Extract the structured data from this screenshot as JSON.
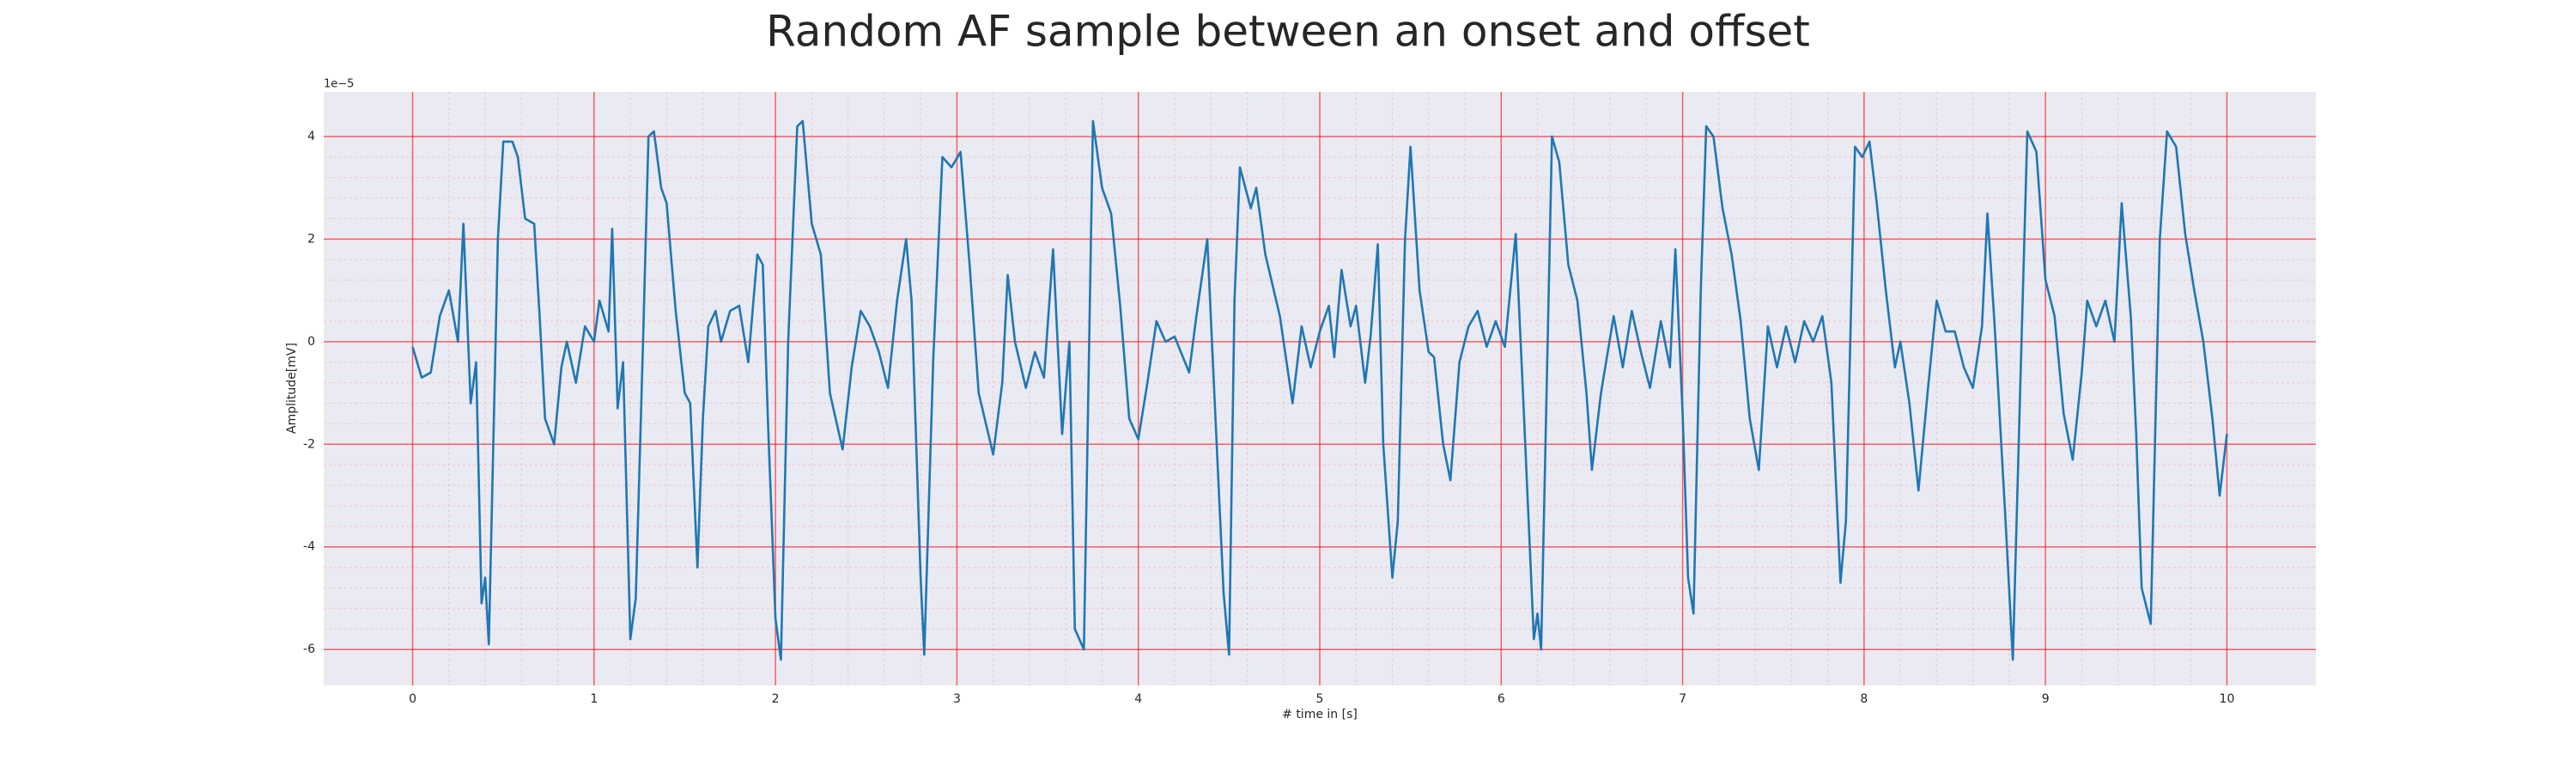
{
  "chart_data": {
    "type": "line",
    "title": "Random AF sample between an onset and offset",
    "xlabel": "# time in [s]",
    "ylabel": "Amplitude[mV]",
    "y_offset_label": "1e−5",
    "color": "#1f77b4",
    "grid": true,
    "grid_color": "#ff0000",
    "xlim": [
      -0.49,
      10.49
    ],
    "ylim": [
      -6.7,
      4.87
    ],
    "xticks": [
      0,
      1,
      2,
      3,
      4,
      5,
      6,
      7,
      8,
      9,
      10
    ],
    "yticks": [
      -6,
      -4,
      -2,
      0,
      2,
      4
    ],
    "x": [
      0,
      0.05,
      0.1,
      0.15,
      0.2,
      0.25,
      0.28,
      0.32,
      0.35,
      0.38,
      0.4,
      0.42,
      0.47,
      0.5,
      0.55,
      0.58,
      0.62,
      0.67,
      0.7,
      0.73,
      0.78,
      0.82,
      0.85,
      0.9,
      0.95,
      1.0,
      1.03,
      1.08,
      1.1,
      1.13,
      1.16,
      1.2,
      1.23,
      1.27,
      1.3,
      1.33,
      1.37,
      1.4,
      1.45,
      1.5,
      1.53,
      1.57,
      1.6,
      1.63,
      1.67,
      1.7,
      1.75,
      1.8,
      1.85,
      1.9,
      1.93,
      1.96,
      2.0,
      2.03,
      2.07,
      2.12,
      2.15,
      2.2,
      2.25,
      2.3,
      2.37,
      2.42,
      2.47,
      2.52,
      2.57,
      2.62,
      2.67,
      2.72,
      2.75,
      2.8,
      2.82,
      2.87,
      2.92,
      2.97,
      3.02,
      3.07,
      3.12,
      3.2,
      3.25,
      3.28,
      3.32,
      3.38,
      3.43,
      3.48,
      3.53,
      3.58,
      3.62,
      3.65,
      3.7,
      3.75,
      3.8,
      3.85,
      3.9,
      3.95,
      4.0,
      4.05,
      4.1,
      4.15,
      4.2,
      4.28,
      4.32,
      4.38,
      4.42,
      4.47,
      4.5,
      4.53,
      4.56,
      4.62,
      4.65,
      4.7,
      4.78,
      4.85,
      4.9,
      4.95,
      5.0,
      5.05,
      5.08,
      5.12,
      5.17,
      5.2,
      5.25,
      5.28,
      5.32,
      5.35,
      5.4,
      5.43,
      5.47,
      5.5,
      5.55,
      5.6,
      5.63,
      5.68,
      5.72,
      5.77,
      5.82,
      5.87,
      5.92,
      5.97,
      6.02,
      6.08,
      6.12,
      6.18,
      6.2,
      6.22,
      6.28,
      6.32,
      6.37,
      6.42,
      6.47,
      6.5,
      6.55,
      6.62,
      6.67,
      6.72,
      6.77,
      6.82,
      6.88,
      6.93,
      6.96,
      7.0,
      7.03,
      7.06,
      7.1,
      7.13,
      7.17,
      7.22,
      7.27,
      7.32,
      7.37,
      7.42,
      7.47,
      7.52,
      7.57,
      7.62,
      7.67,
      7.72,
      7.77,
      7.82,
      7.87,
      7.9,
      7.95,
      7.99,
      8.03,
      8.07,
      8.12,
      8.17,
      8.2,
      8.25,
      8.3,
      8.35,
      8.4,
      8.45,
      8.5,
      8.55,
      8.6,
      8.65,
      8.68,
      8.72,
      8.78,
      8.82,
      8.86,
      8.9,
      8.95,
      9.0,
      9.05,
      9.1,
      9.15,
      9.2,
      9.23,
      9.28,
      9.33,
      9.38,
      9.42,
      9.47,
      9.5,
      9.53,
      9.58,
      9.63,
      9.67,
      9.72,
      9.77,
      9.82,
      9.87,
      9.92,
      9.96,
      10.0
    ],
    "values": [
      -0.1,
      -0.7,
      -0.6,
      0.5,
      1.0,
      0.0,
      2.3,
      -1.2,
      -0.4,
      -5.1,
      -4.6,
      -5.9,
      2.0,
      3.9,
      3.9,
      3.6,
      2.4,
      2.3,
      0.5,
      -1.5,
      -2.0,
      -0.5,
      0,
      -0.8,
      0.3,
      0,
      0.8,
      0.2,
      2.2,
      -1.3,
      -0.4,
      -5.8,
      -5.0,
      0,
      4.0,
      4.1,
      3.0,
      2.7,
      0.6,
      -1.0,
      -1.2,
      -4.4,
      -1.5,
      0.3,
      0.6,
      0,
      0.6,
      0.7,
      -0.4,
      1.7,
      1.5,
      -1.7,
      -5.4,
      -6.2,
      0,
      4.2,
      4.3,
      2.3,
      1.7,
      -1.0,
      -2.1,
      -0.5,
      0.6,
      0.3,
      -0.2,
      -0.9,
      0.8,
      2.0,
      0.8,
      -4.6,
      -6.1,
      -0.3,
      3.6,
      3.4,
      3.7,
      1.5,
      -1.0,
      -2.2,
      -0.8,
      1.3,
      0.0,
      -0.9,
      -0.2,
      -0.7,
      1.8,
      -1.8,
      0.0,
      -5.6,
      -6.0,
      4.3,
      3.0,
      2.5,
      0.7,
      -1.5,
      -1.9,
      -0.8,
      0.4,
      0,
      0.1,
      -0.6,
      0.5,
      2.0,
      -1.1,
      -4.9,
      -6.1,
      0.8,
      3.4,
      2.6,
      3.0,
      1.7,
      0.5,
      -1.2,
      0.3,
      -0.5,
      0.2,
      0.7,
      -0.3,
      1.4,
      0.3,
      0.7,
      -0.8,
      0.1,
      1.9,
      -2.0,
      -4.6,
      -3.5,
      2.0,
      3.8,
      1.0,
      -0.2,
      -0.3,
      -2.0,
      -2.7,
      -0.4,
      0.3,
      0.6,
      -0.1,
      0.4,
      -0.1,
      2.1,
      -1.0,
      -5.8,
      -5.3,
      -6.0,
      4.0,
      3.5,
      1.5,
      0.8,
      -1.0,
      -2.5,
      -1.0,
      0.5,
      -0.5,
      0.6,
      -0.2,
      -0.9,
      0.4,
      -0.5,
      1.8,
      -1.4,
      -4.6,
      -5.3,
      1.0,
      4.2,
      4.0,
      2.6,
      1.7,
      0.4,
      -1.5,
      -2.5,
      0.3,
      -0.5,
      0.3,
      -0.4,
      0.4,
      0.0,
      0.5,
      -0.8,
      -4.7,
      -3.5,
      3.8,
      3.6,
      3.9,
      2.7,
      1.0,
      -0.5,
      0.0,
      -1.2,
      -2.9,
      -1.0,
      0.8,
      0.2,
      0.2,
      -0.5,
      -0.9,
      0.3,
      2.5,
      0.3,
      -3.5,
      -6.2,
      -1.0,
      4.1,
      3.7,
      1.2,
      0.5,
      -1.4,
      -2.3,
      -0.6,
      0.8,
      0.3,
      0.8,
      0.0,
      2.7,
      0.5,
      -1.8,
      -4.8,
      -5.5,
      2.0,
      4.1,
      3.8,
      2.1,
      1.0,
      0.0,
      -1.5,
      -3.0,
      -1.8
    ]
  }
}
